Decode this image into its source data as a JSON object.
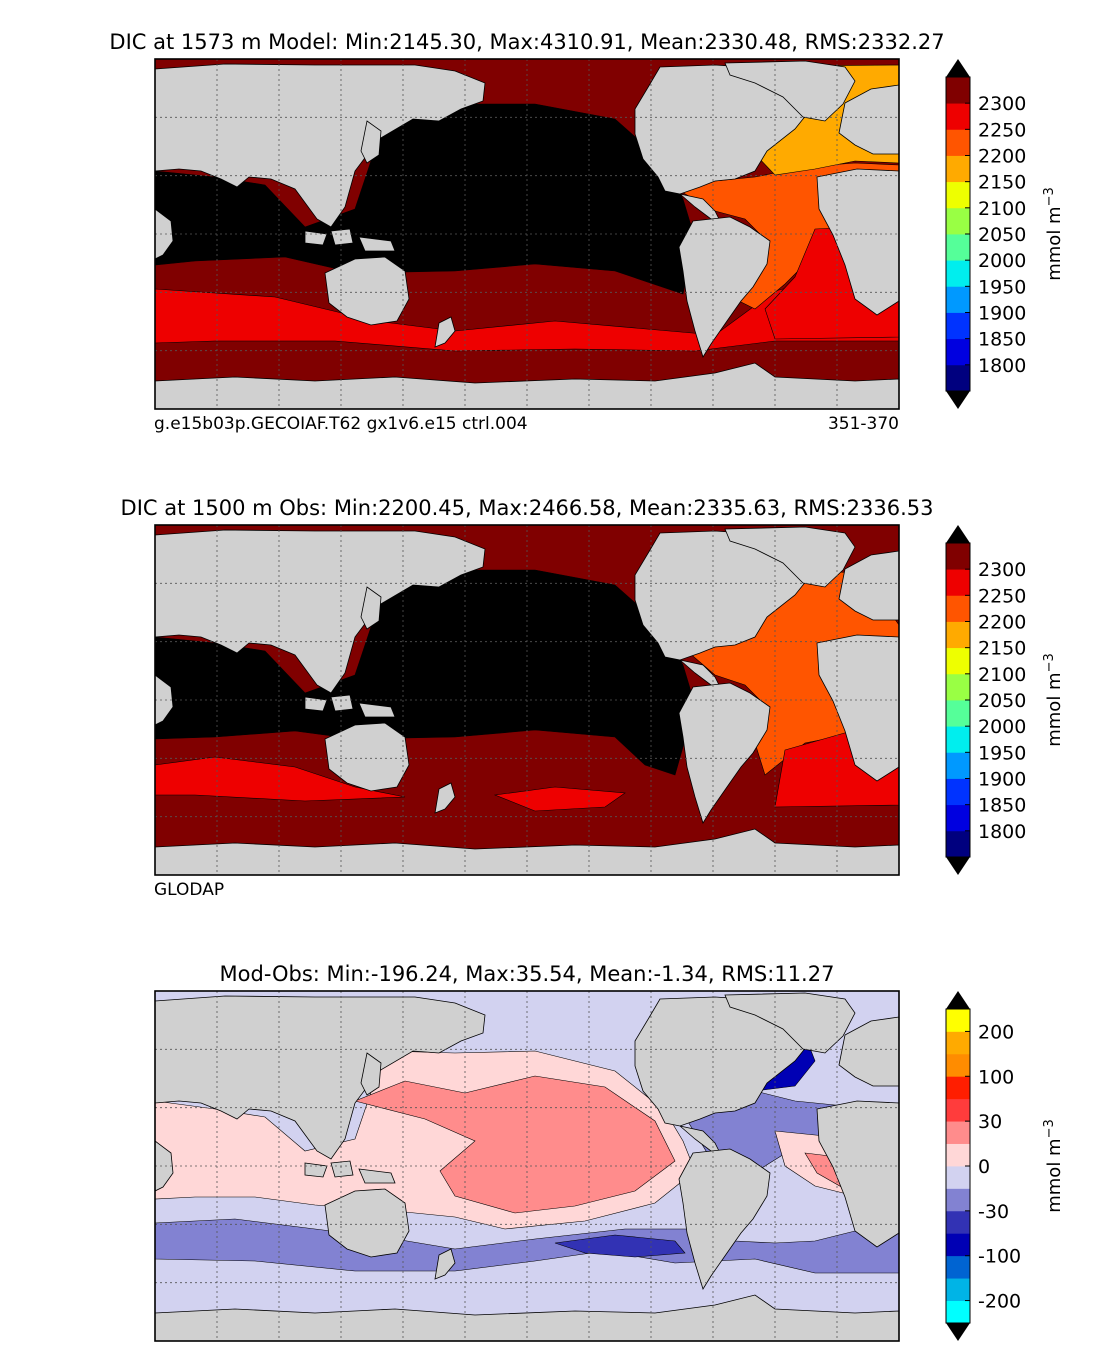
{
  "figure": {
    "panels": [
      {
        "id": "model",
        "title": "DIC at 1573 m Model: Min:2145.30, Max:4310.91, Mean:2330.48, RMS:2332.27",
        "caption_left": "g.e15b03p.GECOIAF.T62 gx1v6.e15 ctrl.004",
        "caption_right": "351-370"
      },
      {
        "id": "obs",
        "title": "DIC at 1500 m Obs: Min:2200.45, Max:2466.58, Mean:2335.63, RMS:2336.53",
        "caption_left": "GLODAP",
        "caption_right": ""
      },
      {
        "id": "diff",
        "title": "Mod-Obs: Min:-196.24, Max:35.54, Mean:-1.34, RMS:11.27",
        "caption_left": "",
        "caption_right": ""
      }
    ]
  },
  "chart_data": [
    {
      "type": "heatmap",
      "title": "DIC at 1573 m Model: Min:2145.30, Max:4310.91, Mean:2330.48, RMS:2332.27",
      "stats": {
        "min": 2145.3,
        "max": 4310.91,
        "mean": 2330.48,
        "rms": 2332.27
      },
      "map": "global ocean, Pacific-centered",
      "colorbar": {
        "label": "mmol m$^{-3}$",
        "levels": [
          1750,
          1800,
          1850,
          1900,
          1950,
          2000,
          2050,
          2100,
          2150,
          2200,
          2250,
          2300,
          2350
        ],
        "tick_labels": [
          "1800",
          "1850",
          "1900",
          "1950",
          "2000",
          "2050",
          "2100",
          "2150",
          "2200",
          "2250",
          "2300"
        ],
        "colors": [
          "#00007f",
          "#0000e0",
          "#0033ff",
          "#0099ff",
          "#00eeee",
          "#55ff99",
          "#99ff44",
          "#eeff00",
          "#ffaa00",
          "#ff5500",
          "#ee0000",
          "#800000"
        ],
        "extend": "both",
        "over_color": "#000000",
        "under_color": "#000000"
      },
      "features": {
        "pacific_indian_deep": "over (black, >2350)",
        "north_atlantic": "2150-2200",
        "south_atlantic": "2200-2250",
        "southern_ocean": "2250-2350"
      }
    },
    {
      "type": "heatmap",
      "title": "DIC at 1500 m Obs: Min:2200.45, Max:2466.58, Mean:2335.63, RMS:2336.53",
      "stats": {
        "min": 2200.45,
        "max": 2466.58,
        "mean": 2335.63,
        "rms": 2336.53
      },
      "map": "global ocean, Pacific-centered",
      "colorbar": {
        "label": "mmol m$^{-3}$",
        "levels": [
          1750,
          1800,
          1850,
          1900,
          1950,
          2000,
          2050,
          2100,
          2150,
          2200,
          2250,
          2300,
          2350
        ],
        "tick_labels": [
          "1800",
          "1850",
          "1900",
          "1950",
          "2000",
          "2050",
          "2100",
          "2150",
          "2200",
          "2250",
          "2300"
        ],
        "colors": [
          "#00007f",
          "#0000e0",
          "#0033ff",
          "#0099ff",
          "#00eeee",
          "#55ff99",
          "#99ff44",
          "#eeff00",
          "#ffaa00",
          "#ff5500",
          "#ee0000",
          "#800000"
        ],
        "extend": "both",
        "over_color": "#000000",
        "under_color": "#000000"
      },
      "features": {
        "pacific_indian_deep": "over (black, >2350)",
        "north_atlantic": "2200-2250",
        "south_atlantic": "2250-2300",
        "southern_ocean": "2250-2350"
      }
    },
    {
      "type": "heatmap",
      "title": "Mod-Obs: Min:-196.24, Max:35.54, Mean:-1.34, RMS:11.27",
      "stats": {
        "min": -196.24,
        "max": 35.54,
        "mean": -1.34,
        "rms": 11.27
      },
      "map": "global ocean, Pacific-centered",
      "colorbar": {
        "label": "mmol m$^{-3}$",
        "levels": [
          -300,
          -200,
          -150,
          -100,
          -50,
          -30,
          -15,
          0,
          15,
          30,
          50,
          100,
          150,
          200,
          300
        ],
        "tick_labels": [
          "-200",
          "-100",
          "-30",
          "0",
          "30",
          "100",
          "200"
        ],
        "tick_level_index": [
          1,
          3,
          5,
          7,
          9,
          11,
          13
        ],
        "colors": [
          "#00ffff",
          "#00b4e6",
          "#0064d2",
          "#0000b4",
          "#3232b4",
          "#8282d2",
          "#d2d2f0",
          "#ffd7d7",
          "#ff8c8c",
          "#ff3c3c",
          "#ff1e00",
          "#ff8c00",
          "#ffaa00",
          "#ffff00"
        ],
        "extend": "both",
        "over_color": "#000000",
        "under_color": "#000000"
      },
      "features": {
        "north_atlantic": "-100 to -30",
        "north_pacific": "-15 to 15",
        "tropical_pacific": "15 to 30",
        "southern_ocean": "-30 to 0"
      }
    }
  ],
  "colors": {
    "land": "#d0d0d0",
    "background": "#ffffff",
    "grid": "#555555"
  }
}
